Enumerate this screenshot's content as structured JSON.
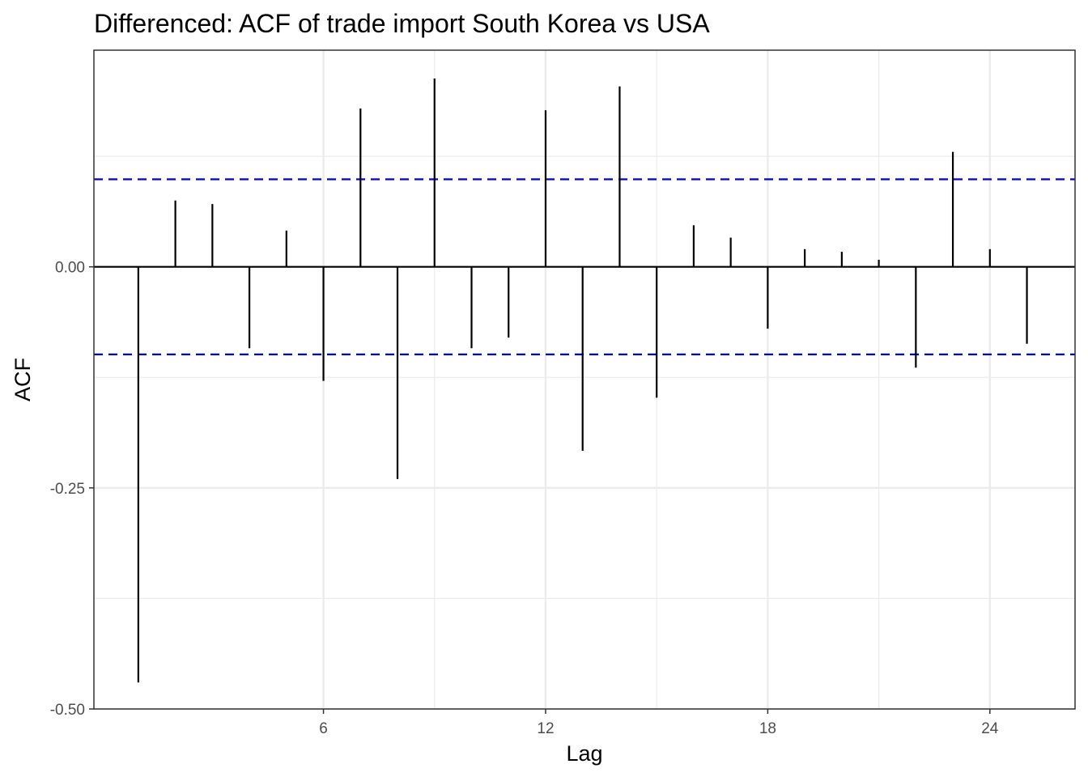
{
  "chart_data": {
    "type": "bar",
    "title": "Differenced: ACF of trade import South Korea vs USA",
    "xlabel": "Lag",
    "ylabel": "ACF",
    "xlim": [
      -0.2,
      26.3
    ],
    "ylim": [
      -0.5,
      0.245
    ],
    "x_ticks": [
      6,
      12,
      18,
      24
    ],
    "x_tick_labels": [
      "6",
      "12",
      "18",
      "24"
    ],
    "y_ticks": [
      -0.5,
      -0.25,
      0.0
    ],
    "y_tick_labels": [
      "-0.50",
      "-0.25",
      "0.00"
    ],
    "y_minor_gridlines": [
      -0.375,
      -0.125,
      0.125
    ],
    "grid": true,
    "confidence_bound": 0.099,
    "lags": [
      1,
      2,
      3,
      4,
      5,
      6,
      7,
      8,
      9,
      10,
      11,
      12,
      13,
      14,
      15,
      16,
      17,
      18,
      19,
      20,
      21,
      22,
      23,
      24,
      25
    ],
    "values": [
      -0.47,
      0.075,
      0.071,
      -0.092,
      0.041,
      -0.129,
      0.179,
      -0.24,
      0.213,
      -0.092,
      -0.08,
      0.177,
      -0.208,
      0.204,
      -0.148,
      0.047,
      0.033,
      -0.07,
      0.02,
      0.017,
      0.008,
      -0.114,
      0.13,
      0.02,
      -0.087
    ]
  },
  "colors": {
    "bars": "#000000",
    "zero_line": "#000000",
    "confidence_line": "#0000cc",
    "grid": "#ebebeb",
    "panel_border": "#333333",
    "background": "#ffffff"
  }
}
